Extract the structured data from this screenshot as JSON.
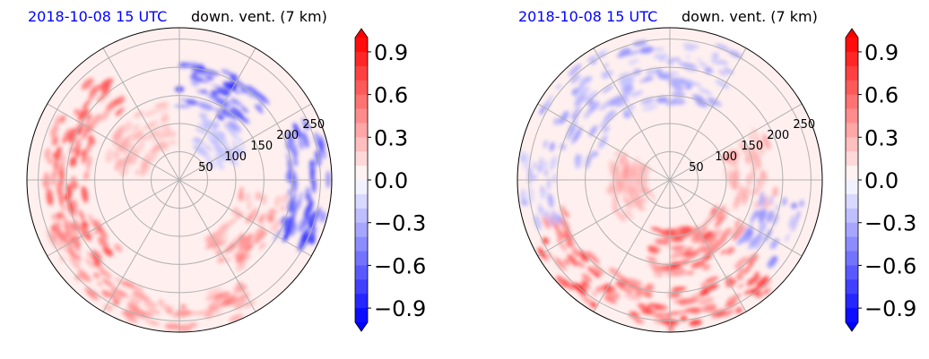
{
  "chart_data": [
    {
      "type": "heatmap",
      "projection": "polar",
      "title_date": "2018-10-08 15 UTC",
      "title_var": "down. vent. (7 km)",
      "radial_ticks": [
        "50",
        "100",
        "150",
        "200",
        "250"
      ],
      "radial_values": [
        50,
        100,
        150,
        200,
        250
      ],
      "radial_max": 270,
      "angular_spokes": 12,
      "grid": true,
      "cmap": "bwr",
      "vmin": -1.0,
      "vmax": 1.0,
      "colorbar_ticks": [
        "0.9",
        "0.6",
        "0.3",
        "0.0",
        "−0.3",
        "−0.6",
        "−0.9"
      ],
      "colorbar_values": [
        0.9,
        0.6,
        0.3,
        0.0,
        -0.3,
        -0.6,
        -0.9
      ],
      "features": [
        {
          "sign": 1,
          "r0": 160,
          "r1": 240,
          "a0": 125,
          "a1": 230,
          "val": 0.75
        },
        {
          "sign": 1,
          "r0": 205,
          "r1": 265,
          "a0": 200,
          "a1": 300,
          "val": 0.55
        },
        {
          "sign": 1,
          "r0": 110,
          "r1": 190,
          "a0": 295,
          "a1": 350,
          "val": 0.5
        },
        {
          "sign": 1,
          "r0": 60,
          "r1": 140,
          "a0": 100,
          "a1": 170,
          "val": 0.35
        },
        {
          "sign": -1,
          "r0": 130,
          "r1": 210,
          "a0": 40,
          "a1": 90,
          "val": 0.8
        },
        {
          "sign": -1,
          "r0": 195,
          "r1": 265,
          "a0": 330,
          "a1": 25,
          "val": 0.9
        },
        {
          "sign": -1,
          "r0": 60,
          "r1": 130,
          "a0": 20,
          "a1": 70,
          "val": 0.3
        }
      ]
    },
    {
      "type": "heatmap",
      "projection": "polar",
      "title_date": "2018-10-08 15 UTC",
      "title_var": "down. vent. (7 km)",
      "radial_ticks": [
        "50",
        "100",
        "150",
        "200",
        "250"
      ],
      "radial_values": [
        50,
        100,
        150,
        200,
        250
      ],
      "radial_max": 270,
      "angular_spokes": 12,
      "grid": true,
      "cmap": "bwr",
      "vmin": -1.0,
      "vmax": 1.0,
      "colorbar_ticks": [
        "0.9",
        "0.6",
        "0.3",
        "0.0",
        "−0.3",
        "−0.6",
        "−0.9"
      ],
      "colorbar_values": [
        0.9,
        0.6,
        0.3,
        0.0,
        -0.3,
        -0.6,
        -0.9
      ],
      "features": [
        {
          "sign": 1,
          "r0": 190,
          "r1": 265,
          "a0": 195,
          "a1": 320,
          "val": 0.85
        },
        {
          "sign": 1,
          "r0": 90,
          "r1": 170,
          "a0": 255,
          "a1": 330,
          "val": 0.75
        },
        {
          "sign": 1,
          "r0": 40,
          "r1": 110,
          "a0": 150,
          "a1": 220,
          "val": 0.4
        },
        {
          "sign": 1,
          "r0": 100,
          "r1": 190,
          "a0": 340,
          "a1": 30,
          "val": 0.4
        },
        {
          "sign": -1,
          "r0": 130,
          "r1": 260,
          "a0": 60,
          "a1": 170,
          "val": 0.45
        },
        {
          "sign": -1,
          "r0": 200,
          "r1": 265,
          "a0": 170,
          "a1": 200,
          "val": 0.35
        },
        {
          "sign": -1,
          "r0": 160,
          "r1": 240,
          "a0": 320,
          "a1": 350,
          "val": 0.6
        }
      ]
    }
  ],
  "colors": {
    "title_date": "#0000ff",
    "title_var": "#000000",
    "grid": "#b0b0b0",
    "boundary": "#000000",
    "background_tint": "#fff0ef"
  }
}
